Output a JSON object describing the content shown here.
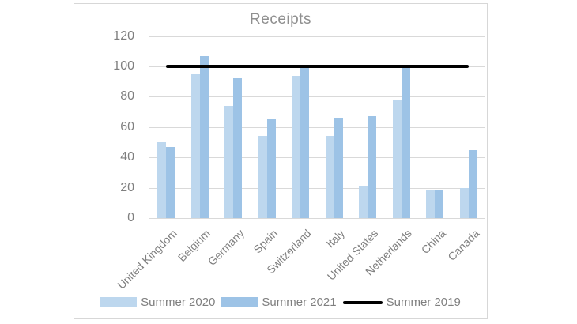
{
  "chart_data": {
    "type": "bar",
    "title": "Receipts",
    "categories": [
      "United Kingdom",
      "Belgium",
      "Germany",
      "Spain",
      "Switzerland",
      "Italy",
      "United States",
      "Netherlands",
      "China",
      "Canada"
    ],
    "series": [
      {
        "name": "Summer 2020",
        "type": "bar",
        "color": "#bdd7ee",
        "values": [
          50,
          95,
          74,
          54,
          94,
          54,
          21,
          78,
          18,
          20
        ]
      },
      {
        "name": "Summer 2021",
        "type": "bar",
        "color": "#9dc3e6",
        "values": [
          47,
          107,
          92,
          65,
          100,
          66,
          67,
          100,
          19,
          45
        ]
      },
      {
        "name": "Summer 2019",
        "type": "line",
        "color": "#000000",
        "values": [
          100,
          100,
          100,
          100,
          100,
          100,
          100,
          100,
          100,
          100
        ]
      }
    ],
    "y_axis": {
      "min": 0,
      "max": 120,
      "step": 20,
      "ticks": [
        "0",
        "20",
        "40",
        "60",
        "80",
        "100",
        "120"
      ]
    },
    "xlabel": "",
    "ylabel": "",
    "grid": true,
    "gridline_color": "#d9d9d9",
    "legend_position": "bottom"
  }
}
